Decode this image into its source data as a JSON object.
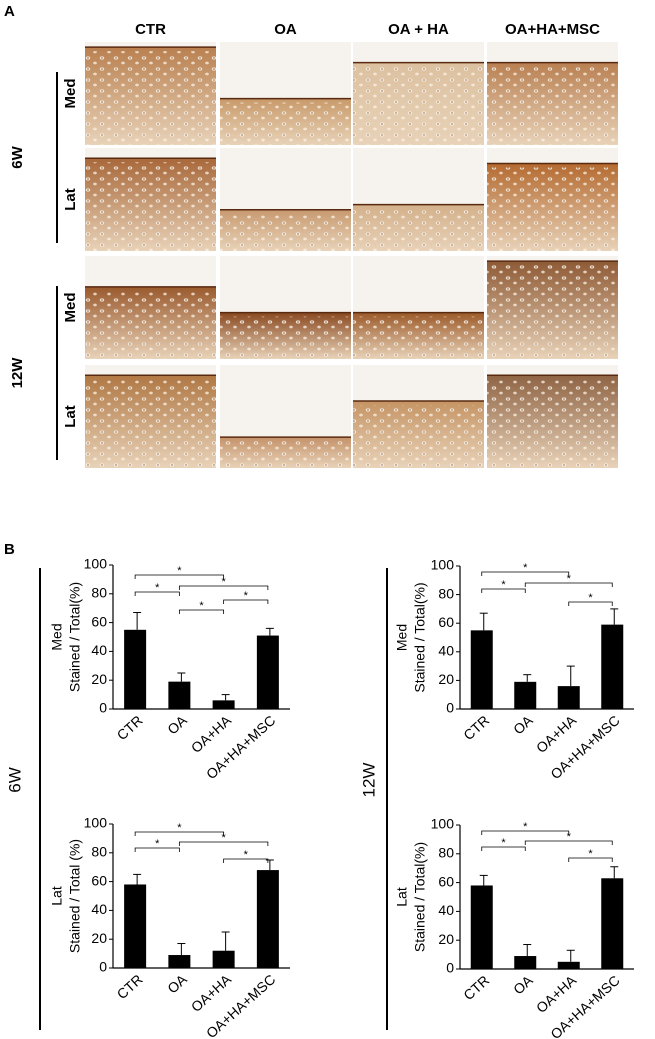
{
  "panel_a": {
    "label": "A",
    "columns": [
      "CTR",
      "OA",
      "OA + HA",
      "OA+HA+MSC"
    ],
    "groups": [
      {
        "label": "6W",
        "rows": [
          "Med",
          "Lat"
        ]
      },
      {
        "label": "12W",
        "rows": [
          "Med",
          "Lat"
        ]
      }
    ]
  },
  "panel_b": {
    "label": "B",
    "groups": [
      "6W",
      "12W"
    ]
  },
  "chart_data": [
    {
      "type": "bar",
      "group_label": "Med",
      "ylabel": "Stained / Total(%)",
      "categories": [
        "CTR",
        "OA",
        "OA+HA",
        "OA+HA+MSC"
      ],
      "values": [
        55,
        19,
        6,
        51
      ],
      "errors": [
        12,
        6,
        4,
        5
      ],
      "color": "#000000",
      "ylim": [
        0,
        100
      ],
      "yticks": [
        0,
        20,
        40,
        60,
        80,
        100
      ],
      "annotations": [
        "*",
        "*",
        "*",
        "*",
        "*"
      ]
    },
    {
      "type": "bar",
      "group_label": "Med",
      "ylabel": "Stained / Total(%)",
      "categories": [
        "CTR",
        "OA",
        "OA+HA",
        "OA+HA+MSC"
      ],
      "values": [
        55,
        19,
        16,
        59
      ],
      "errors": [
        12,
        5,
        14,
        11
      ],
      "color": "#000000",
      "ylim": [
        0,
        100
      ],
      "yticks": [
        0,
        20,
        40,
        60,
        80,
        100
      ],
      "annotations": [
        "*",
        "*",
        "*",
        "*"
      ]
    },
    {
      "type": "bar",
      "group_label": "Lat",
      "ylabel": "Stained / Total (%)",
      "categories": [
        "CTR",
        "OA",
        "OA+HA",
        "OA+HA+MSC"
      ],
      "values": [
        58,
        9,
        12,
        68
      ],
      "errors": [
        7,
        8,
        13,
        7
      ],
      "color": "#000000",
      "ylim": [
        0,
        100
      ],
      "yticks": [
        0,
        20,
        40,
        60,
        80,
        100
      ],
      "annotations": [
        "*",
        "*",
        "*",
        "*"
      ]
    },
    {
      "type": "bar",
      "group_label": "Lat",
      "ylabel": "Stained / Total(%)",
      "categories": [
        "CTR",
        "OA",
        "OA+HA",
        "OA+HA+MSC"
      ],
      "values": [
        58,
        9,
        5,
        63
      ],
      "errors": [
        7,
        8,
        8,
        8
      ],
      "color": "#000000",
      "ylim": [
        0,
        100
      ],
      "yticks": [
        0,
        20,
        40,
        60,
        80,
        100
      ],
      "annotations": [
        "*",
        "*",
        "*",
        "*"
      ]
    }
  ]
}
